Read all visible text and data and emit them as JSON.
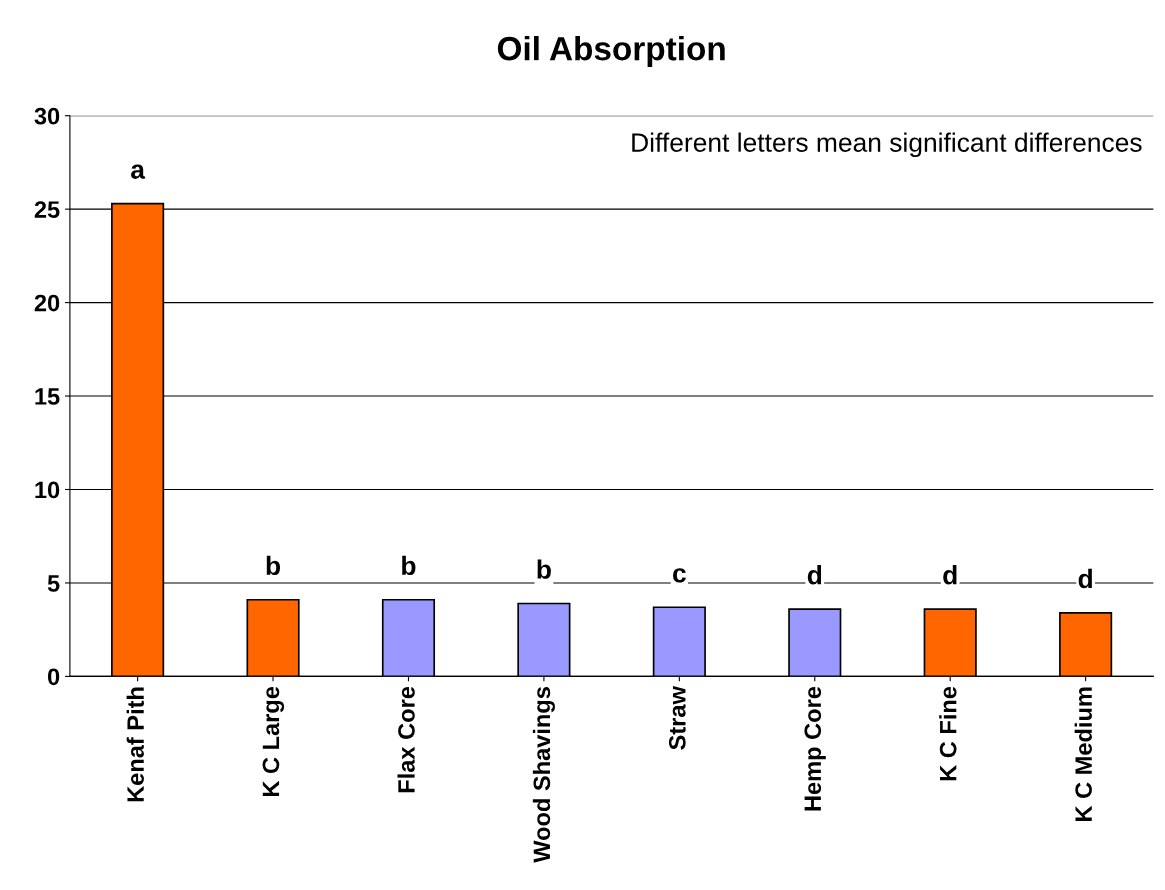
{
  "chart_data": {
    "type": "bar",
    "title": "Oil Absorption",
    "categories": [
      "Kenaf Pith",
      "K C Large",
      "Flax Core",
      "Wood Shavings",
      "Straw",
      "Hemp Core",
      "K C Fine",
      "K C Medium"
    ],
    "values": [
      25.3,
      4.1,
      4.1,
      3.9,
      3.7,
      3.6,
      3.6,
      3.4
    ],
    "colors": [
      "#ff6600",
      "#ff6600",
      "#9999ff",
      "#9999ff",
      "#9999ff",
      "#9999ff",
      "#ff6600",
      "#ff6600"
    ],
    "ylim": [
      0,
      30
    ],
    "yticks": [
      0,
      5,
      10,
      15,
      20,
      25,
      30
    ],
    "grid": "y",
    "annotations": [
      "Different letters mean significant differences",
      {
        "text": "a",
        "x": "Kenaf Pith",
        "y": 25.3
      },
      {
        "text": "b",
        "x": "K C Large",
        "y": 4.1
      },
      {
        "text": "b",
        "x": "Flax Core",
        "y": 4.1
      },
      {
        "text": "b",
        "x": "Wood Shavings",
        "y": 3.9
      },
      {
        "text": "c",
        "x": "Straw",
        "y": 3.7
      },
      {
        "text": "d",
        "x": "Hemp Core",
        "y": 3.6
      },
      {
        "text": "d",
        "x": "K C Fine",
        "y": 3.6
      },
      {
        "text": "d",
        "x": "K C Medium",
        "y": 3.4
      }
    ]
  }
}
